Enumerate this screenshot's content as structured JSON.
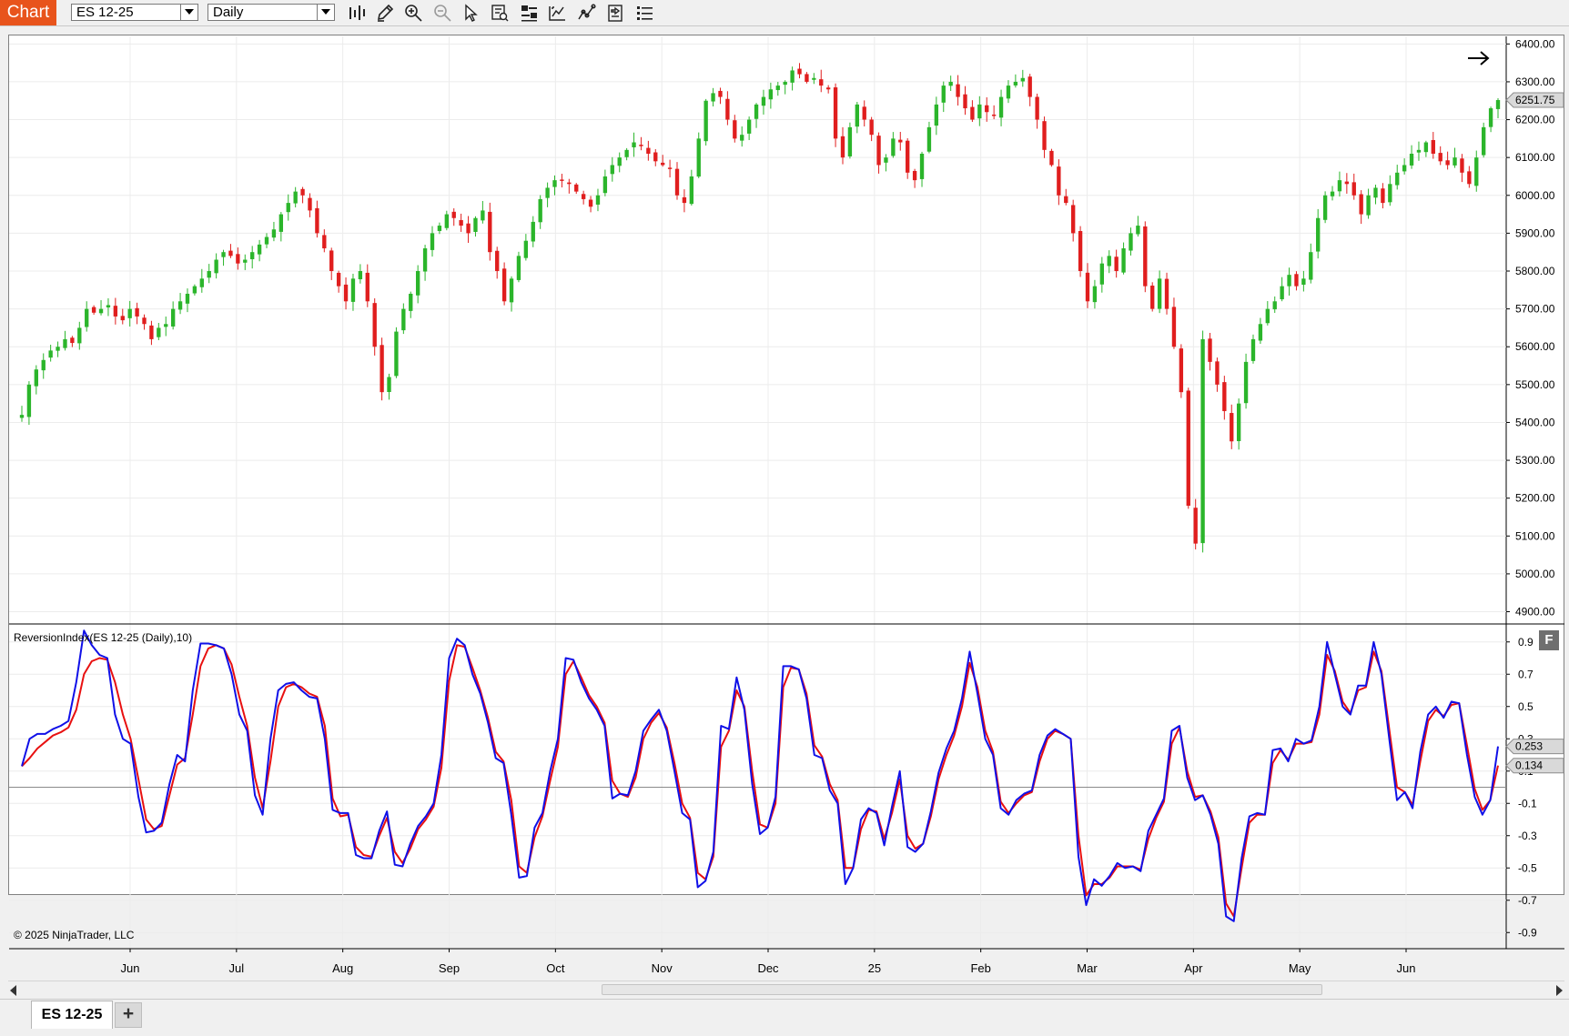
{
  "app": {
    "badge": "Chart"
  },
  "toolbar": {
    "instrument": "ES 12-25",
    "interval": "Daily",
    "buttons": [
      "bar-type-icon",
      "draw-pencil-icon",
      "zoom-in-icon",
      "zoom-out-icon",
      "cursor-icon",
      "data-box-icon",
      "properties-icon",
      "indicators-icon",
      "strategies-icon",
      "chart-trader-icon",
      "more-menu-icon"
    ]
  },
  "colors": {
    "up": "#2bb52b",
    "down": "#e01e1e",
    "index": "#1010e8",
    "signal": "#e81010"
  },
  "price_axis": {
    "ticks": [
      "6400.00",
      "6300.00",
      "6200.00",
      "6100.00",
      "6000.00",
      "5900.00",
      "5800.00",
      "5700.00",
      "5600.00",
      "5500.00",
      "5400.00",
      "5300.00",
      "5200.00",
      "5100.00",
      "5000.00",
      "4900.00"
    ],
    "last_price": "6251.75"
  },
  "indicator": {
    "label": "ReversionIndex(ES 12-25 (Daily),10)",
    "ticks": [
      "0.9",
      "0.7",
      "0.5",
      "0.3",
      "0.1",
      "-0.1",
      "-0.3",
      "-0.5",
      "-0.7",
      "-0.9"
    ],
    "value_blue": "0.253",
    "value_red": "0.134",
    "f_button": "F"
  },
  "time_axis": [
    "Jun",
    "Jul",
    "Aug",
    "Sep",
    "Oct",
    "Nov",
    "Dec",
    "25",
    "Feb",
    "Mar",
    "Apr",
    "May",
    "Jun"
  ],
  "copyright": "© 2025 NinjaTrader, LLC",
  "tabs": {
    "active": "ES 12-25",
    "add": "+"
  },
  "chart_data": {
    "type": "candlestick",
    "instrument": "ES 12-25",
    "interval": "Daily",
    "ylim": [
      4870,
      6420
    ],
    "approx_closes": [
      5420,
      5500,
      5540,
      5565,
      5590,
      5600,
      5620,
      5610,
      5650,
      5700,
      5690,
      5700,
      5710,
      5680,
      5670,
      5700,
      5680,
      5660,
      5620,
      5650,
      5660,
      5700,
      5720,
      5740,
      5760,
      5780,
      5800,
      5830,
      5850,
      5840,
      5820,
      5830,
      5850,
      5870,
      5890,
      5910,
      5950,
      5980,
      6010,
      6000,
      5960,
      5900,
      5860,
      5800,
      5760,
      5720,
      5780,
      5800,
      5720,
      5600,
      5480,
      5520,
      5640,
      5700,
      5740,
      5800,
      5860,
      5900,
      5920,
      5950,
      5940,
      5920,
      5900,
      5940,
      5960,
      5850,
      5800,
      5720,
      5780,
      5840,
      5880,
      5930,
      5990,
      6020,
      6040,
      6040,
      6030,
      6010,
      5990,
      5970,
      6000,
      6050,
      6080,
      6100,
      6120,
      6140,
      6130,
      6110,
      6090,
      6080,
      6070,
      6000,
      5980,
      6050,
      6150,
      6250,
      6270,
      6260,
      6200,
      6150,
      6160,
      6200,
      6240,
      6260,
      6280,
      6290,
      6300,
      6330,
      6320,
      6300,
      6310,
      6290,
      6280,
      6150,
      6100,
      6180,
      6240,
      6200,
      6160,
      6080,
      6100,
      6150,
      6140,
      6060,
      6040,
      6110,
      6180,
      6240,
      6290,
      6300,
      6260,
      6230,
      6200,
      6240,
      6220,
      6210,
      6260,
      6290,
      6300,
      6310,
      6260,
      6200,
      6120,
      6080,
      6000,
      5980,
      5900,
      5800,
      5720,
      5760,
      5820,
      5840,
      5800,
      5860,
      5900,
      5920,
      5760,
      5700,
      5780,
      5700,
      5600,
      5480,
      5180,
      5080,
      5620,
      5560,
      5500,
      5430,
      5350,
      5450,
      5560,
      5620,
      5660,
      5700,
      5720,
      5760,
      5790,
      5760,
      5780,
      5850,
      5940,
      6000,
      6010,
      6040,
      6030,
      6000,
      5950,
      6000,
      6020,
      5980,
      6030,
      6060,
      6080,
      6110,
      6120,
      6140,
      6110,
      6090,
      6080,
      6100,
      6060,
      6030,
      6100,
      6180,
      6230,
      6251.75
    ],
    "indicator": {
      "name": "ReversionIndex",
      "period": 10,
      "ylim": [
        -1.0,
        1.0
      ],
      "reversion_index": [
        0.13,
        0.3,
        0.33,
        0.33,
        0.36,
        0.38,
        0.41,
        0.65,
        0.97,
        0.88,
        0.82,
        0.8,
        0.45,
        0.3,
        0.27,
        -0.06,
        -0.28,
        -0.27,
        -0.22,
        0.02,
        0.2,
        0.16,
        0.6,
        0.89,
        0.89,
        0.88,
        0.86,
        0.7,
        0.45,
        0.35,
        -0.05,
        -0.17,
        0.3,
        0.6,
        0.64,
        0.65,
        0.6,
        0.56,
        0.55,
        0.3,
        -0.14,
        -0.16,
        -0.16,
        -0.42,
        -0.44,
        -0.44,
        -0.27,
        -0.15,
        -0.48,
        -0.49,
        -0.35,
        -0.24,
        -0.18,
        -0.1,
        0.2,
        0.8,
        0.92,
        0.88,
        0.7,
        0.58,
        0.4,
        0.18,
        0.15,
        -0.17,
        -0.56,
        -0.55,
        -0.25,
        -0.16,
        0.1,
        0.3,
        0.8,
        0.79,
        0.65,
        0.55,
        0.48,
        0.38,
        -0.07,
        -0.04,
        -0.05,
        0.1,
        0.35,
        0.42,
        0.48,
        0.35,
        0.1,
        -0.16,
        -0.2,
        -0.62,
        -0.58,
        -0.4,
        0.38,
        0.36,
        0.68,
        0.48,
        0.02,
        -0.29,
        -0.25,
        -0.06,
        0.75,
        0.75,
        0.73,
        0.55,
        0.2,
        0.18,
        -0.02,
        -0.1,
        -0.6,
        -0.5,
        -0.2,
        -0.13,
        -0.16,
        -0.36,
        -0.12,
        0.1,
        -0.37,
        -0.4,
        -0.35,
        -0.15,
        0.09,
        0.24,
        0.35,
        0.55,
        0.84,
        0.58,
        0.3,
        0.2,
        -0.13,
        -0.17,
        -0.08,
        -0.04,
        -0.02,
        0.2,
        0.32,
        0.36,
        0.33,
        0.3,
        -0.43,
        -0.73,
        -0.57,
        -0.61,
        -0.55,
        -0.47,
        -0.5,
        -0.49,
        -0.52,
        -0.27,
        -0.17,
        -0.07,
        0.35,
        0.38,
        0.06,
        -0.08,
        -0.05,
        -0.17,
        -0.35,
        -0.8,
        -0.83,
        -0.44,
        -0.18,
        -0.16,
        -0.17,
        0.23,
        0.24,
        0.16,
        0.3,
        0.27,
        0.29,
        0.5,
        0.9,
        0.7,
        0.5,
        0.45,
        0.63,
        0.63,
        0.9,
        0.7,
        0.3,
        -0.08,
        -0.03,
        -0.13,
        0.22,
        0.45,
        0.5,
        0.43,
        0.53,
        0.52,
        0.2,
        -0.06,
        -0.17,
        -0.08,
        0.253
      ],
      "signal": [
        0.13,
        0.18,
        0.24,
        0.28,
        0.32,
        0.34,
        0.37,
        0.48,
        0.7,
        0.78,
        0.8,
        0.79,
        0.65,
        0.45,
        0.3,
        0.05,
        -0.2,
        -0.26,
        -0.24,
        -0.05,
        0.14,
        0.18,
        0.45,
        0.75,
        0.86,
        0.88,
        0.86,
        0.76,
        0.56,
        0.38,
        0.06,
        -0.13,
        0.16,
        0.5,
        0.62,
        0.64,
        0.62,
        0.58,
        0.56,
        0.38,
        -0.07,
        -0.18,
        -0.17,
        -0.37,
        -0.42,
        -0.43,
        -0.3,
        -0.19,
        -0.4,
        -0.47,
        -0.38,
        -0.26,
        -0.2,
        -0.12,
        0.12,
        0.66,
        0.88,
        0.87,
        0.74,
        0.6,
        0.43,
        0.22,
        0.16,
        -0.08,
        -0.49,
        -0.53,
        -0.31,
        -0.18,
        0.04,
        0.25,
        0.7,
        0.78,
        0.68,
        0.57,
        0.5,
        0.4,
        0.04,
        -0.04,
        -0.06,
        0.06,
        0.3,
        0.4,
        0.46,
        0.37,
        0.15,
        -0.1,
        -0.19,
        -0.53,
        -0.57,
        -0.43,
        0.25,
        0.35,
        0.6,
        0.5,
        0.1,
        -0.23,
        -0.25,
        -0.1,
        0.62,
        0.74,
        0.73,
        0.58,
        0.26,
        0.19,
        0.02,
        -0.08,
        -0.5,
        -0.5,
        -0.26,
        -0.14,
        -0.15,
        -0.32,
        -0.16,
        0.05,
        -0.3,
        -0.38,
        -0.35,
        -0.18,
        0.05,
        0.2,
        0.32,
        0.5,
        0.77,
        0.62,
        0.35,
        0.22,
        -0.09,
        -0.16,
        -0.1,
        -0.05,
        -0.03,
        0.16,
        0.3,
        0.35,
        0.33,
        0.3,
        -0.3,
        -0.67,
        -0.6,
        -0.6,
        -0.56,
        -0.49,
        -0.49,
        -0.49,
        -0.51,
        -0.32,
        -0.19,
        -0.09,
        0.27,
        0.37,
        0.1,
        -0.06,
        -0.05,
        -0.15,
        -0.31,
        -0.72,
        -0.8,
        -0.5,
        -0.22,
        -0.17,
        -0.17,
        0.15,
        0.23,
        0.17,
        0.27,
        0.27,
        0.28,
        0.45,
        0.82,
        0.72,
        0.53,
        0.46,
        0.6,
        0.62,
        0.84,
        0.72,
        0.36,
        0.0,
        -0.03,
        -0.11,
        0.16,
        0.41,
        0.48,
        0.44,
        0.51,
        0.52,
        0.26,
        -0.01,
        -0.14,
        -0.08,
        0.134
      ]
    }
  }
}
